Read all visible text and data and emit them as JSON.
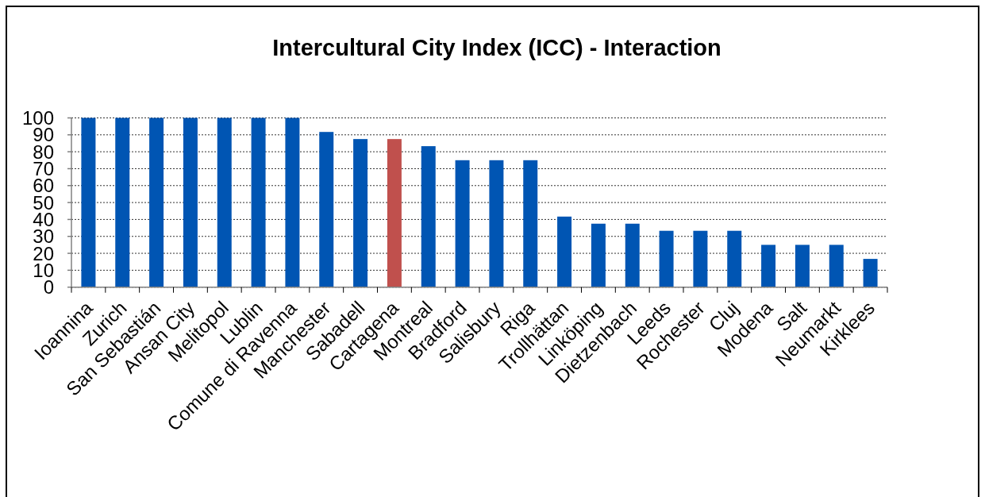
{
  "chart_data": {
    "type": "bar",
    "title": "Intercultural City Index (ICC) - Interaction",
    "categories": [
      "Ioannina",
      "Zurich",
      "San Sebastián",
      "Ansan City",
      "Melitopol",
      "Lublin",
      "Comune di Ravenna",
      "Manchester",
      "Sabadell",
      "Cartagena",
      "Montreal",
      "Bradford",
      "Salisbury",
      "Riga",
      "Trollhättan",
      "Linköping",
      "Dietzenbach",
      "Leeds",
      "Rochester",
      "Cluj",
      "Modena",
      "Salt",
      "Neumarkt",
      "Kirklees"
    ],
    "values": [
      100,
      100,
      100,
      100,
      100,
      100,
      100,
      91.7,
      87.5,
      87.5,
      83.3,
      75,
      75,
      75,
      41.7,
      37.5,
      37.5,
      33.3,
      33.3,
      33.3,
      25,
      25,
      25,
      16.7
    ],
    "colors": [
      "#0055b3",
      "#0055b3",
      "#0055b3",
      "#0055b3",
      "#0055b3",
      "#0055b3",
      "#0055b3",
      "#0055b3",
      "#0055b3",
      "#c0504d",
      "#0055b3",
      "#0055b3",
      "#0055b3",
      "#0055b3",
      "#0055b3",
      "#0055b3",
      "#0055b3",
      "#0055b3",
      "#0055b3",
      "#0055b3",
      "#0055b3",
      "#0055b3",
      "#0055b3",
      "#0055b3"
    ],
    "ylim": [
      0,
      100
    ],
    "yticks": [
      0,
      10,
      20,
      30,
      40,
      50,
      60,
      70,
      80,
      90,
      100
    ],
    "grid": "y"
  }
}
